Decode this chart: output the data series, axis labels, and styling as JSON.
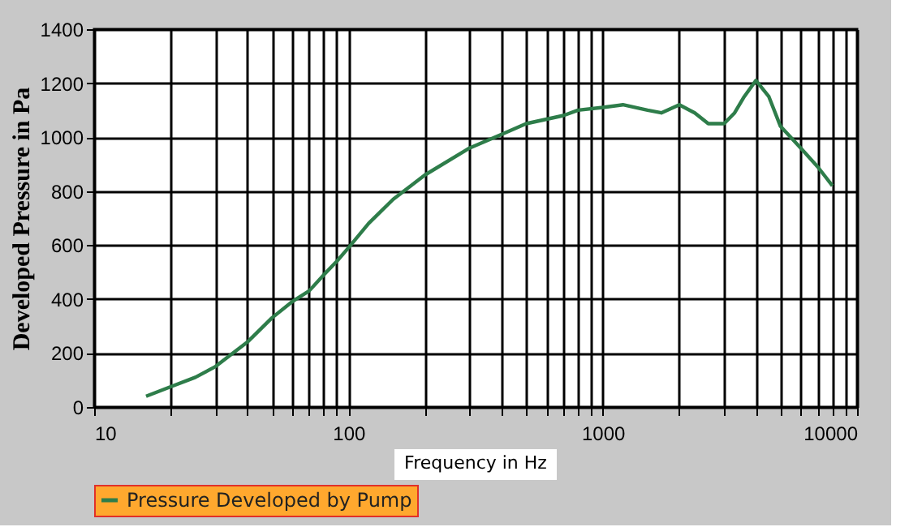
{
  "chart_data": {
    "type": "line",
    "xlabel": "Frequency in Hz",
    "ylabel": "Developed Pressure in Pa",
    "log": "x",
    "xlim": [
      10,
      10000
    ],
    "xticks": [
      10,
      {
        "value": 20,
        "label": null
      },
      {
        "value": 30,
        "label": null
      },
      {
        "value": 40,
        "label": null
      },
      {
        "value": 50,
        "label": null
      },
      {
        "value": 60,
        "label": null
      },
      {
        "value": 70,
        "label": null
      },
      {
        "value": 80,
        "label": null
      },
      {
        "value": 90,
        "label": null
      },
      100,
      {
        "value": 200,
        "label": null
      },
      {
        "value": 300,
        "label": null
      },
      {
        "value": 400,
        "label": null
      },
      {
        "value": 500,
        "label": null
      },
      {
        "value": 600,
        "label": null
      },
      {
        "value": 700,
        "label": null
      },
      {
        "value": 800,
        "label": null
      },
      {
        "value": 900,
        "label": null
      },
      1000,
      {
        "value": 2000,
        "label": null
      },
      {
        "value": 3000,
        "label": null
      },
      {
        "value": 4000,
        "label": null
      },
      {
        "value": 5000,
        "label": null
      },
      {
        "value": 6000,
        "label": null
      },
      {
        "value": 7000,
        "label": null
      },
      {
        "value": 8000,
        "label": null
      },
      {
        "value": 9000,
        "label": null
      },
      10000
    ],
    "ylim": [
      0,
      1400
    ],
    "yticks": [
      0,
      200,
      400,
      600,
      800,
      1000,
      1200,
      1400
    ],
    "grid": true,
    "legend": "bottom",
    "line_style": "solid",
    "marker": "none",
    "series": [
      {
        "name": "Pressure Developed by Pump",
        "color": "#2e7d4a",
        "x": [
          16,
          20,
          25,
          30,
          40,
          50,
          60,
          70,
          80,
          90,
          100,
          120,
          150,
          200,
          300,
          400,
          500,
          700,
          800,
          1000,
          1200,
          1500,
          1700,
          2000,
          2300,
          2600,
          3000,
          3300,
          3600,
          4000,
          4500,
          5000,
          6000,
          7000,
          8000
        ],
        "values": [
          40,
          75,
          110,
          150,
          240,
          330,
          390,
          430,
          490,
          540,
          590,
          680,
          770,
          860,
          960,
          1010,
          1050,
          1080,
          1100,
          1110,
          1120,
          1100,
          1090,
          1120,
          1090,
          1050,
          1050,
          1090,
          1150,
          1210,
          1150,
          1040,
          960,
          890,
          820
        ]
      }
    ]
  }
}
